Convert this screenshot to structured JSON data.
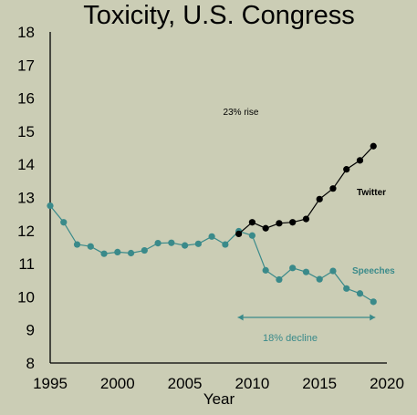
{
  "chart_data": {
    "type": "line",
    "title": "Toxicity, U.S. Congress",
    "xlabel": "Year",
    "ylabel": "",
    "xlim": [
      1995,
      2020
    ],
    "ylim": [
      8,
      18
    ],
    "xticks": [
      1995,
      2000,
      2005,
      2010,
      2015,
      2020
    ],
    "yticks": [
      8,
      9,
      10,
      11,
      12,
      13,
      14,
      15,
      16,
      17,
      18
    ],
    "grid": false,
    "series": [
      {
        "name": "Speeches",
        "color": "#3a8a8a",
        "x": [
          1995,
          1996,
          1997,
          1998,
          1999,
          2000,
          2001,
          2002,
          2003,
          2004,
          2005,
          2006,
          2007,
          2008,
          2009,
          2010,
          2011,
          2012,
          2013,
          2014,
          2015,
          2016,
          2017,
          2018,
          2019
        ],
        "values": [
          12.75,
          12.25,
          11.58,
          11.52,
          11.3,
          11.35,
          11.32,
          11.4,
          11.62,
          11.63,
          11.55,
          11.6,
          11.82,
          11.58,
          11.98,
          11.85,
          10.8,
          10.52,
          10.87,
          10.75,
          10.53,
          10.78,
          10.25,
          10.1,
          9.85
        ]
      },
      {
        "name": "Twitter",
        "color": "#000000",
        "x": [
          2009,
          2010,
          2011,
          2012,
          2013,
          2014,
          2015,
          2016,
          2017,
          2018,
          2019
        ],
        "values": [
          11.9,
          12.25,
          12.07,
          12.22,
          12.25,
          12.35,
          12.95,
          13.27,
          13.85,
          14.12,
          14.55
        ]
      }
    ],
    "annotations": {
      "rise": "23% rise",
      "decline": "18% decline",
      "decline_color": "#3a8a8a",
      "decline_range": [
        2009,
        2019
      ]
    }
  }
}
